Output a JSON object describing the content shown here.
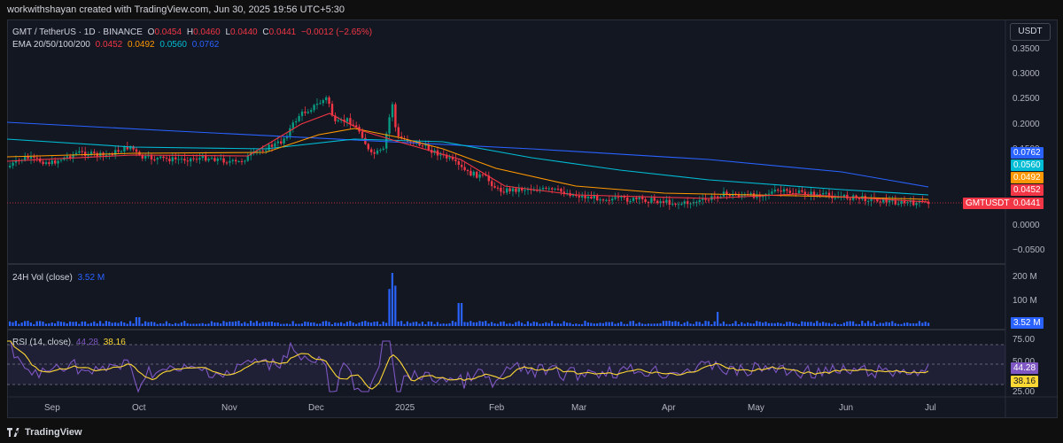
{
  "header": {
    "attribution": "workwithshayan created with TradingView.com, Jun 30, 2025 19:56 UTC+5:30"
  },
  "legend": {
    "symbol": "GMT / TetherUS · 1D · BINANCE",
    "ohlc": [
      {
        "label": "O",
        "value": "0.0454"
      },
      {
        "label": "H",
        "value": "0.0460"
      },
      {
        "label": "L",
        "value": "0.0440"
      },
      {
        "label": "C",
        "value": "0.0441"
      }
    ],
    "change": "−0.0012 (−2.65%)",
    "ema_label": "EMA 20/50/100/200",
    "ema_values": [
      "0.0452",
      "0.0492",
      "0.0560",
      "0.0762"
    ]
  },
  "currency_button": "USDT",
  "price_axis": [
    "0.3500",
    "0.3000",
    "0.2500",
    "0.2000",
    "0.1500",
    "0.0000",
    "−0.0500"
  ],
  "price_tags": [
    {
      "text": "0.0762",
      "color": "#2962ff"
    },
    {
      "text": "0.0560",
      "color": "#00bcd4"
    },
    {
      "text": "0.0492",
      "color": "#ff9800"
    },
    {
      "text": "0.0452",
      "color": "#f23645"
    }
  ],
  "symbol_tag": {
    "name": "GMTUSDT",
    "value": "0.0441",
    "color": "#f23645"
  },
  "volume": {
    "label": "24H Vol (close)",
    "value": "3.52 M",
    "axis": [
      "200 M",
      "100 M"
    ],
    "tag": "3.52 M"
  },
  "rsi": {
    "label": "RSI (14, close)",
    "value": "44.28",
    "ma_value": "38.16",
    "axis": [
      "75.00",
      "50.00",
      "25.00"
    ],
    "tag_rsi": "44.28",
    "tag_ma": "38.16"
  },
  "time_axis": [
    "Sep",
    "Oct",
    "Nov",
    "Dec",
    "2025",
    "Feb",
    "Mar",
    "Apr",
    "May",
    "Jun",
    "Jul"
  ],
  "footer": {
    "brand": "TradingView"
  },
  "colors": {
    "up": "#089981",
    "down": "#f23645",
    "ema20": "#f23645",
    "ema50": "#ff9800",
    "ema100": "#00bcd4",
    "ema200": "#2962ff",
    "volume": "#2962ff",
    "rsi": "#7e57c2",
    "rsi_ma": "#fdd835"
  }
}
